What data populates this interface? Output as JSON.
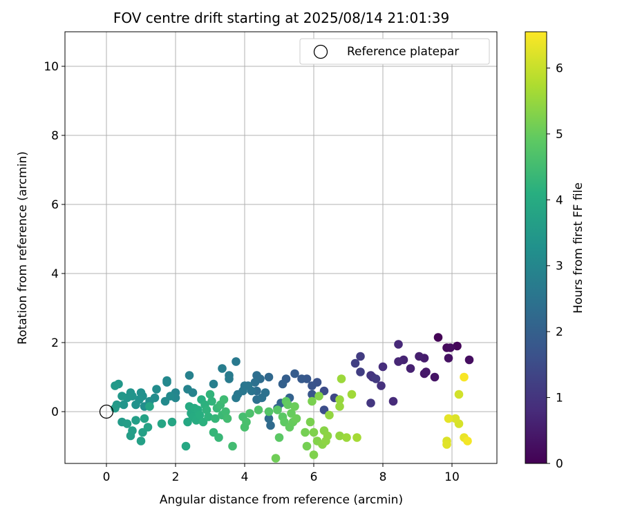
{
  "chart_data": {
    "type": "scatter",
    "title": "FOV centre drift starting at 2025/08/14 21:01:39",
    "xlabel": "Angular distance from reference (arcmin)",
    "ylabel": "Rotation from reference (arcmin)",
    "xlim": [
      -1.2,
      11.3
    ],
    "ylim": [
      -1.5,
      11.0
    ],
    "x_ticks": [
      0,
      2,
      4,
      6,
      8,
      10
    ],
    "y_ticks": [
      0,
      2,
      4,
      6,
      8,
      10
    ],
    "grid": true,
    "legend": {
      "position": "top-right",
      "entries": [
        "Reference platepar"
      ]
    },
    "reference_point": {
      "name": "Reference platepar",
      "x": 0.0,
      "y": 0.0,
      "marker": "open-circle"
    },
    "colorbar": {
      "label": "Hours from first FF file",
      "colormap": "viridis",
      "range": [
        0,
        6.55
      ],
      "ticks": [
        0,
        1,
        2,
        3,
        4,
        5,
        6
      ]
    },
    "points_note": "each point: [x arcmin, y arcmin, hours]",
    "points": [
      [
        9.6,
        2.15,
        0.05
      ],
      [
        10.15,
        1.9,
        0.1
      ],
      [
        9.85,
        1.85,
        0.15
      ],
      [
        9.95,
        1.85,
        0.2
      ],
      [
        10.5,
        1.5,
        0.25
      ],
      [
        9.9,
        1.55,
        0.3
      ],
      [
        9.5,
        1.0,
        0.35
      ],
      [
        9.2,
        1.1,
        0.4
      ],
      [
        9.25,
        1.15,
        0.45
      ],
      [
        9.2,
        1.55,
        0.5
      ],
      [
        9.05,
        1.6,
        0.55
      ],
      [
        8.8,
        1.25,
        0.6
      ],
      [
        8.6,
        1.5,
        0.65
      ],
      [
        8.45,
        1.45,
        0.7
      ],
      [
        8.45,
        1.95,
        0.75
      ],
      [
        8.3,
        0.3,
        0.8
      ],
      [
        8.0,
        1.3,
        0.85
      ],
      [
        7.95,
        0.75,
        0.9
      ],
      [
        7.7,
        1.0,
        0.95
      ],
      [
        7.65,
        1.05,
        1.0
      ],
      [
        7.65,
        0.25,
        1.05
      ],
      [
        7.8,
        0.95,
        1.1
      ],
      [
        7.35,
        1.6,
        1.15
      ],
      [
        7.35,
        1.15,
        1.2
      ],
      [
        7.2,
        1.4,
        1.25
      ],
      [
        6.6,
        0.4,
        1.4
      ],
      [
        6.3,
        0.6,
        1.5
      ],
      [
        6.3,
        0.05,
        1.55
      ],
      [
        6.1,
        0.85,
        1.65
      ],
      [
        5.95,
        0.75,
        1.7
      ],
      [
        5.95,
        0.5,
        1.75
      ],
      [
        5.8,
        0.95,
        1.8
      ],
      [
        5.65,
        0.95,
        1.85
      ],
      [
        5.45,
        1.1,
        1.9
      ],
      [
        5.2,
        0.95,
        1.95
      ],
      [
        5.1,
        0.8,
        2.0
      ],
      [
        5.3,
        0.4,
        2.05
      ],
      [
        5.05,
        0.25,
        2.1
      ],
      [
        4.95,
        0.1,
        2.15
      ],
      [
        4.7,
        1.0,
        2.2
      ],
      [
        4.75,
        -0.4,
        2.25
      ],
      [
        4.7,
        -0.2,
        2.3
      ],
      [
        4.45,
        0.95,
        2.3
      ],
      [
        4.35,
        1.05,
        2.35
      ],
      [
        4.35,
        0.6,
        2.35
      ],
      [
        4.3,
        0.85,
        2.4
      ],
      [
        4.35,
        0.35,
        2.4
      ],
      [
        4.5,
        0.4,
        2.45
      ],
      [
        4.6,
        0.55,
        2.45
      ],
      [
        4.2,
        0.6,
        2.5
      ],
      [
        4.1,
        0.75,
        2.55
      ],
      [
        4.0,
        0.75,
        2.55
      ],
      [
        3.95,
        0.6,
        2.6
      ],
      [
        3.8,
        0.5,
        2.6
      ],
      [
        3.75,
        0.4,
        2.65
      ],
      [
        3.75,
        1.45,
        2.65
      ],
      [
        3.55,
        1.05,
        2.7
      ],
      [
        3.55,
        0.95,
        2.7
      ],
      [
        3.35,
        1.25,
        2.75
      ],
      [
        3.1,
        0.8,
        2.8
      ],
      [
        2.4,
        1.05,
        2.85
      ],
      [
        2.5,
        0.55,
        2.9
      ],
      [
        2.35,
        0.65,
        2.9
      ],
      [
        2.0,
        0.55,
        2.95
      ],
      [
        2.0,
        0.4,
        3.0
      ],
      [
        1.75,
        0.9,
        3.05
      ],
      [
        1.75,
        0.85,
        3.05
      ],
      [
        1.85,
        0.45,
        3.1
      ],
      [
        1.7,
        0.3,
        3.1
      ],
      [
        1.45,
        0.65,
        3.15
      ],
      [
        1.4,
        0.4,
        3.15
      ],
      [
        1.25,
        0.3,
        3.2
      ],
      [
        1.1,
        0.15,
        3.2
      ],
      [
        1.05,
        0.45,
        3.25
      ],
      [
        1.0,
        0.55,
        3.25
      ],
      [
        0.95,
        0.35,
        3.3
      ],
      [
        0.85,
        0.2,
        3.3
      ],
      [
        0.75,
        0.45,
        3.35
      ],
      [
        0.7,
        0.55,
        3.35
      ],
      [
        0.6,
        0.4,
        3.4
      ],
      [
        0.5,
        0.2,
        3.4
      ],
      [
        0.45,
        0.45,
        3.45
      ],
      [
        0.35,
        0.8,
        3.45
      ],
      [
        0.25,
        0.75,
        3.5
      ],
      [
        0.3,
        0.2,
        3.5
      ],
      [
        0.25,
        0.1,
        3.55
      ],
      [
        0.45,
        -0.3,
        3.55
      ],
      [
        0.6,
        -0.35,
        3.6
      ],
      [
        0.7,
        -0.7,
        3.6
      ],
      [
        0.75,
        -0.55,
        3.65
      ],
      [
        0.85,
        -0.25,
        3.65
      ],
      [
        1.0,
        -0.85,
        3.7
      ],
      [
        1.05,
        -0.6,
        3.7
      ],
      [
        1.1,
        -0.2,
        3.75
      ],
      [
        1.2,
        -0.45,
        3.75
      ],
      [
        1.25,
        0.15,
        3.8
      ],
      [
        1.6,
        -0.35,
        3.85
      ],
      [
        1.9,
        -0.3,
        3.85
      ],
      [
        2.3,
        -1.0,
        3.9
      ],
      [
        2.35,
        -0.3,
        3.9
      ],
      [
        2.4,
        0.15,
        3.95
      ],
      [
        2.45,
        -0.05,
        3.95
      ],
      [
        2.5,
        -0.15,
        4.0
      ],
      [
        2.55,
        0.1,
        4.0
      ],
      [
        2.6,
        -0.25,
        4.05
      ],
      [
        2.65,
        0.05,
        4.05
      ],
      [
        2.7,
        -0.1,
        4.1
      ],
      [
        2.75,
        0.35,
        4.1
      ],
      [
        2.8,
        -0.3,
        4.15
      ],
      [
        2.85,
        0.2,
        4.15
      ],
      [
        2.9,
        0.05,
        4.2
      ],
      [
        2.95,
        -0.15,
        4.2
      ],
      [
        3.0,
        0.5,
        4.25
      ],
      [
        3.05,
        0.3,
        4.25
      ],
      [
        3.1,
        -0.6,
        4.3
      ],
      [
        3.15,
        -0.2,
        4.3
      ],
      [
        3.2,
        0.1,
        4.35
      ],
      [
        3.25,
        -0.75,
        4.35
      ],
      [
        3.3,
        0.2,
        4.4
      ],
      [
        3.35,
        -0.1,
        4.4
      ],
      [
        3.4,
        0.35,
        4.45
      ],
      [
        3.45,
        0.0,
        4.45
      ],
      [
        3.5,
        -0.2,
        4.5
      ],
      [
        3.65,
        -1.0,
        4.5
      ],
      [
        3.95,
        -0.15,
        4.55
      ],
      [
        4.0,
        -0.45,
        4.6
      ],
      [
        4.05,
        -0.3,
        4.6
      ],
      [
        4.15,
        -0.05,
        4.65
      ],
      [
        4.4,
        0.05,
        4.7
      ],
      [
        4.7,
        0.0,
        4.75
      ],
      [
        4.95,
        0.05,
        4.8
      ],
      [
        5.0,
        -0.75,
        4.85
      ],
      [
        5.1,
        -0.15,
        4.85
      ],
      [
        5.15,
        -0.3,
        4.9
      ],
      [
        5.2,
        0.3,
        4.9
      ],
      [
        5.25,
        0.2,
        4.95
      ],
      [
        5.3,
        -0.45,
        4.95
      ],
      [
        5.35,
        -0.05,
        5.0
      ],
      [
        5.4,
        -0.3,
        5.0
      ],
      [
        5.45,
        0.15,
        5.05
      ],
      [
        5.5,
        -0.2,
        5.05
      ],
      [
        4.9,
        -1.35,
        5.1
      ],
      [
        5.75,
        -0.6,
        5.15
      ],
      [
        5.8,
        -1.0,
        5.15
      ],
      [
        5.9,
        -0.3,
        5.2
      ],
      [
        5.95,
        0.3,
        5.2
      ],
      [
        6.0,
        -0.6,
        5.25
      ],
      [
        6.0,
        -1.25,
        5.25
      ],
      [
        6.1,
        -0.85,
        5.3
      ],
      [
        6.15,
        0.45,
        5.3
      ],
      [
        6.25,
        -0.95,
        5.35
      ],
      [
        6.3,
        -0.55,
        5.35
      ],
      [
        6.35,
        -0.85,
        5.4
      ],
      [
        6.4,
        -0.7,
        5.4
      ],
      [
        6.45,
        -0.1,
        5.45
      ],
      [
        6.75,
        -0.7,
        5.45
      ],
      [
        6.75,
        0.35,
        5.5
      ],
      [
        6.75,
        0.15,
        5.5
      ],
      [
        6.8,
        0.95,
        5.55
      ],
      [
        6.95,
        -0.75,
        5.55
      ],
      [
        7.1,
        0.5,
        5.6
      ],
      [
        7.25,
        -0.75,
        5.65
      ],
      [
        10.2,
        0.5,
        6.1
      ],
      [
        10.2,
        -0.35,
        6.15
      ],
      [
        10.1,
        -0.2,
        6.2
      ],
      [
        9.85,
        -0.85,
        6.2
      ],
      [
        9.85,
        -0.95,
        6.25
      ],
      [
        9.9,
        -0.2,
        6.3
      ],
      [
        10.35,
        -0.75,
        6.35
      ],
      [
        10.45,
        -0.85,
        6.45
      ],
      [
        10.35,
        1.0,
        6.5
      ]
    ]
  }
}
